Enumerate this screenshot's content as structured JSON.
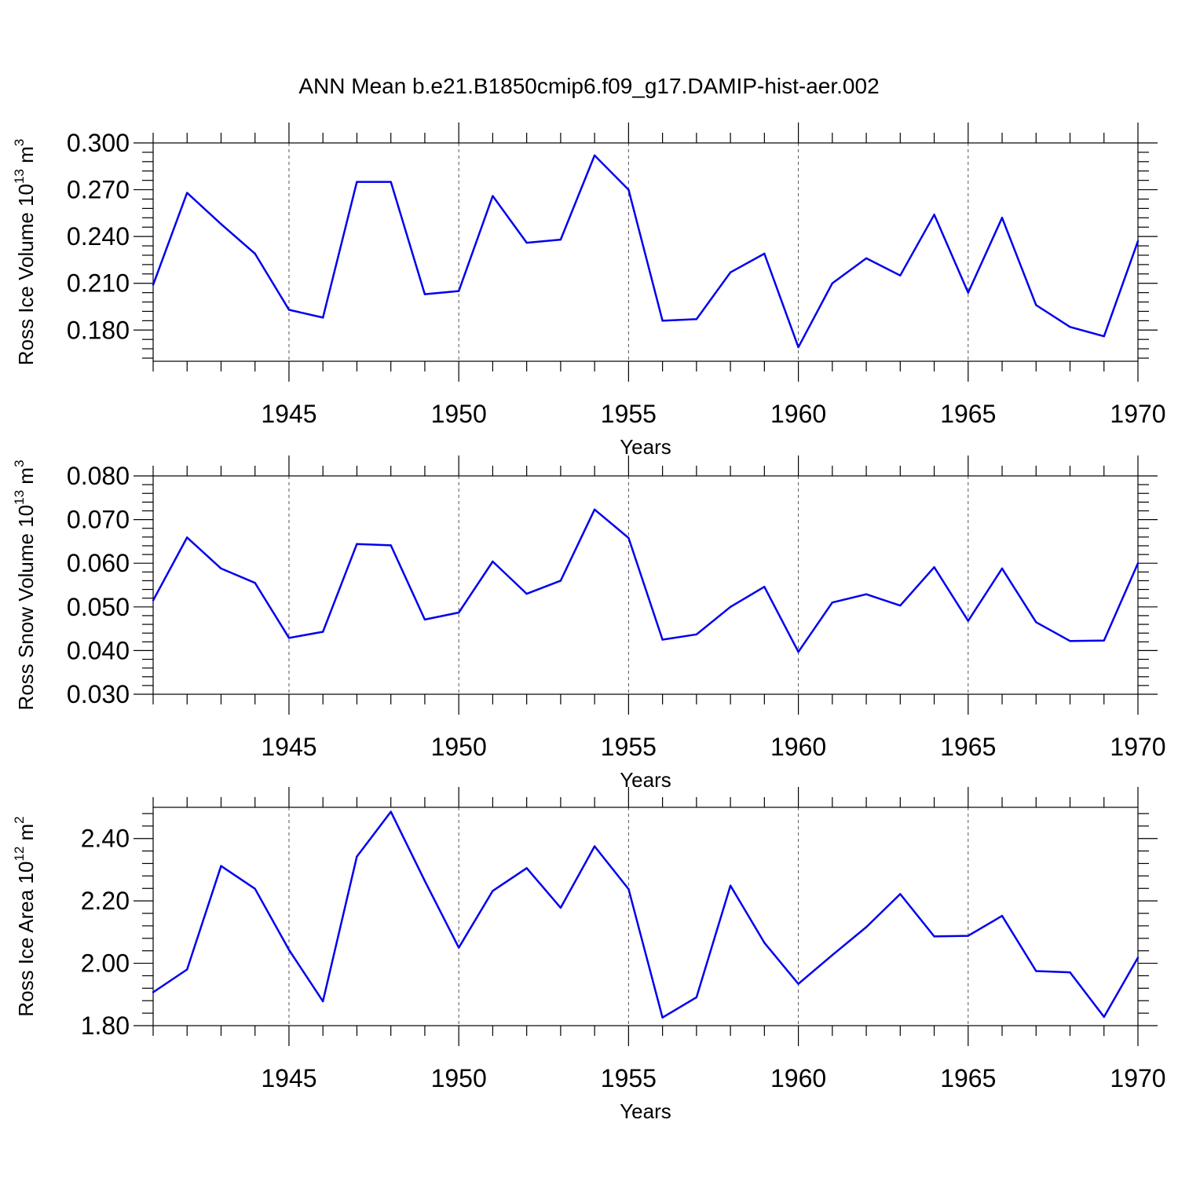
{
  "title": "ANN Mean b.e21.B1850cmip6.f09_g17.DAMIP-hist-aer.002",
  "colors": {
    "series": "#0000ee"
  },
  "chart_data": [
    {
      "type": "line",
      "ylabel": "Ross Ice Volume 10",
      "ylabel_sup": "13",
      "ylabel_unit": " m",
      "ylabel_unit_sup": "3",
      "xlabel": "Years",
      "xlim": [
        1941,
        1970
      ],
      "ylim": [
        0.16,
        0.3
      ],
      "yticks": [
        0.18,
        0.21,
        0.24,
        0.27,
        0.3
      ],
      "ytick_labels": [
        "0.180",
        "0.210",
        "0.240",
        "0.270",
        "0.300"
      ],
      "xticks": [
        1945,
        1950,
        1955,
        1960,
        1965,
        1970
      ],
      "xtick_labels": [
        "1945",
        "1950",
        "1955",
        "1960",
        "1965",
        "1970"
      ],
      "grid_x": [
        1945,
        1950,
        1955,
        1960,
        1965
      ],
      "x": [
        1941,
        1942,
        1943,
        1944,
        1945,
        1946,
        1947,
        1948,
        1949,
        1950,
        1951,
        1952,
        1953,
        1954,
        1955,
        1956,
        1957,
        1958,
        1959,
        1960,
        1961,
        1962,
        1963,
        1964,
        1965,
        1966,
        1967,
        1968,
        1969,
        1970
      ],
      "values": [
        0.209,
        0.268,
        0.248,
        0.229,
        0.193,
        0.188,
        0.275,
        0.275,
        0.203,
        0.205,
        0.266,
        0.236,
        0.238,
        0.292,
        0.27,
        0.186,
        0.187,
        0.217,
        0.229,
        0.169,
        0.21,
        0.226,
        0.215,
        0.254,
        0.204,
        0.252,
        0.196,
        0.182,
        0.176,
        0.237
      ]
    },
    {
      "type": "line",
      "ylabel": "Ross Snow Volume 10",
      "ylabel_sup": "13",
      "ylabel_unit": " m",
      "ylabel_unit_sup": "3",
      "xlabel": "Years",
      "xlim": [
        1941,
        1970
      ],
      "ylim": [
        0.03,
        0.08
      ],
      "yticks": [
        0.03,
        0.04,
        0.05,
        0.06,
        0.07,
        0.08
      ],
      "ytick_labels": [
        "0.030",
        "0.040",
        "0.050",
        "0.060",
        "0.070",
        "0.080"
      ],
      "xticks": [
        1945,
        1950,
        1955,
        1960,
        1965,
        1970
      ],
      "xtick_labels": [
        "1945",
        "1950",
        "1955",
        "1960",
        "1965",
        "1970"
      ],
      "grid_x": [
        1945,
        1950,
        1955,
        1960,
        1965
      ],
      "x": [
        1941,
        1942,
        1943,
        1944,
        1945,
        1946,
        1947,
        1948,
        1949,
        1950,
        1951,
        1952,
        1953,
        1954,
        1955,
        1956,
        1957,
        1958,
        1959,
        1960,
        1961,
        1962,
        1963,
        1964,
        1965,
        1966,
        1967,
        1968,
        1969,
        1970
      ],
      "values": [
        0.0515,
        0.0659,
        0.0588,
        0.0555,
        0.0429,
        0.0443,
        0.0644,
        0.0641,
        0.0471,
        0.0487,
        0.0604,
        0.053,
        0.056,
        0.0723,
        0.0658,
        0.0425,
        0.0437,
        0.05,
        0.0546,
        0.0397,
        0.051,
        0.0529,
        0.0503,
        0.0591,
        0.0468,
        0.0588,
        0.0465,
        0.0422,
        0.0423,
        0.06
      ]
    },
    {
      "type": "line",
      "ylabel": "Ross Ice Area 10",
      "ylabel_sup": "12",
      "ylabel_unit": " m",
      "ylabel_unit_sup": "2",
      "xlabel": "Years",
      "xlim": [
        1941,
        1970
      ],
      "ylim": [
        1.8,
        2.5
      ],
      "yticks": [
        1.8,
        2.0,
        2.2,
        2.4
      ],
      "ytick_labels": [
        "1.80",
        "2.00",
        "2.20",
        "2.40"
      ],
      "xticks": [
        1945,
        1950,
        1955,
        1960,
        1965,
        1970
      ],
      "xtick_labels": [
        "1945",
        "1950",
        "1955",
        "1960",
        "1965",
        "1970"
      ],
      "grid_x": [
        1945,
        1950,
        1955,
        1960,
        1965
      ],
      "x": [
        1941,
        1942,
        1943,
        1944,
        1945,
        1946,
        1947,
        1948,
        1949,
        1950,
        1951,
        1952,
        1953,
        1954,
        1955,
        1956,
        1957,
        1958,
        1959,
        1960,
        1961,
        1962,
        1963,
        1964,
        1965,
        1966,
        1967,
        1968,
        1969,
        1970
      ],
      "values": [
        1.907,
        1.98,
        2.312,
        2.239,
        2.043,
        1.878,
        2.342,
        2.486,
        2.264,
        2.05,
        2.232,
        2.305,
        2.178,
        2.375,
        2.238,
        1.826,
        1.891,
        2.249,
        2.066,
        1.934,
        2.026,
        2.116,
        2.222,
        2.086,
        2.088,
        2.152,
        1.975,
        1.971,
        1.828,
        2.018
      ]
    }
  ]
}
